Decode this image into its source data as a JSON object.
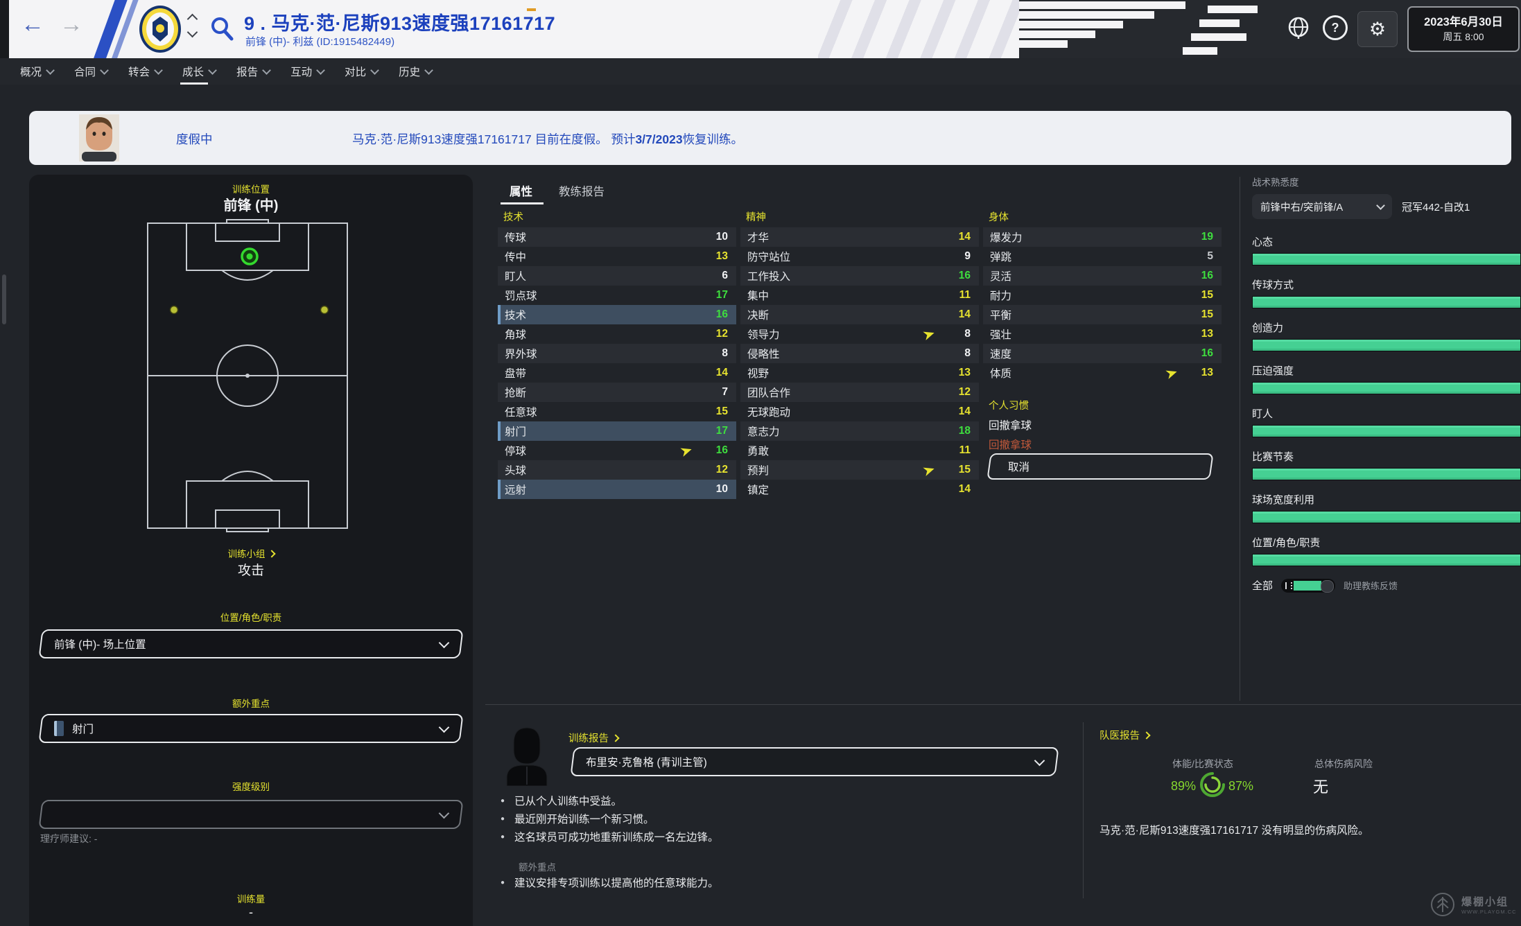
{
  "header": {
    "player_name": "9 . 马克·范·尼斯913速度强17161717",
    "player_info": "前锋 (中)- 利兹 (ID:1915482449)",
    "date_line1": "2023年6月30日",
    "date_line2": "周五 8:00"
  },
  "navbar": {
    "tabs": [
      "概况",
      "合同",
      "转会",
      "成长",
      "报告",
      "互动",
      "对比",
      "历史"
    ],
    "active_index": 3
  },
  "banner": {
    "status": "度假中",
    "message_prefix": "马克·范·尼斯913速度强17161717 目前在度假。 预计",
    "message_bold": "3/7/2023",
    "message_suffix": "恢复训练。"
  },
  "left_panel": {
    "position_label": "训练位置",
    "position_value": "前锋 (中)",
    "group_label": "训练小组",
    "group_value": "攻击",
    "role_label": "位置/角色/职责",
    "role_value": "前锋 (中)- 场上位置",
    "focus_label": "额外重点",
    "focus_value": "射门",
    "intensity_label": "强度级别",
    "intensity_value": "",
    "physio_note": "理疗师建议: -",
    "volume_label": "训练量",
    "volume_value": "-"
  },
  "attributes": {
    "tabs": [
      "属性",
      "教练报告"
    ],
    "active_tab": "属性",
    "columns": [
      {
        "title": "技术",
        "rows": [
          {
            "name": "传球",
            "value": 10
          },
          {
            "name": "传中",
            "value": 13
          },
          {
            "name": "盯人",
            "value": 6
          },
          {
            "name": "罚点球",
            "value": 17
          },
          {
            "name": "技术",
            "value": 16,
            "highlight": true
          },
          {
            "name": "角球",
            "value": 12
          },
          {
            "name": "界外球",
            "value": 8
          },
          {
            "name": "盘带",
            "value": 14
          },
          {
            "name": "抢断",
            "value": 7
          },
          {
            "name": "任意球",
            "value": 15
          },
          {
            "name": "射门",
            "value": 17,
            "highlight": true
          },
          {
            "name": "停球",
            "value": 16,
            "arrow": true
          },
          {
            "name": "头球",
            "value": 12
          },
          {
            "name": "远射",
            "value": 10,
            "highlight": true
          }
        ]
      },
      {
        "title": "精神",
        "rows": [
          {
            "name": "才华",
            "value": 14
          },
          {
            "name": "防守站位",
            "value": 9
          },
          {
            "name": "工作投入",
            "value": 16
          },
          {
            "name": "集中",
            "value": 11
          },
          {
            "name": "决断",
            "value": 14
          },
          {
            "name": "领导力",
            "value": 8,
            "arrow": true
          },
          {
            "name": "侵略性",
            "value": 8
          },
          {
            "name": "视野",
            "value": 13
          },
          {
            "name": "团队合作",
            "value": 12
          },
          {
            "name": "无球跑动",
            "value": 14
          },
          {
            "name": "意志力",
            "value": 18
          },
          {
            "name": "勇敢",
            "value": 11
          },
          {
            "name": "预判",
            "value": 15,
            "arrow": true
          },
          {
            "name": "镇定",
            "value": 14
          }
        ]
      },
      {
        "title": "身体",
        "rows": [
          {
            "name": "爆发力",
            "value": 19
          },
          {
            "name": "弹跳",
            "value": 5
          },
          {
            "name": "灵活",
            "value": 16
          },
          {
            "name": "耐力",
            "value": 15
          },
          {
            "name": "平衡",
            "value": 15
          },
          {
            "name": "强壮",
            "value": 13
          },
          {
            "name": "速度",
            "value": 16
          },
          {
            "name": "体质",
            "value": 13,
            "arrow": true
          }
        ]
      }
    ],
    "habits": {
      "title": "个人习惯",
      "items": [
        {
          "text": "回撤拿球",
          "state": "learned"
        },
        {
          "text": "回撤拿球",
          "state": "learning"
        }
      ],
      "cancel_label": "取消"
    }
  },
  "sidebar": {
    "title": "战术熟悉度",
    "role_dropdown": "前锋中右/突前锋/A",
    "tactic_name": "冠军442-自改1",
    "bars": [
      {
        "label": "心态",
        "value": 100
      },
      {
        "label": "传球方式",
        "value": 100
      },
      {
        "label": "创造力",
        "value": 100
      },
      {
        "label": "压迫强度",
        "value": 100
      },
      {
        "label": "盯人",
        "value": 100
      },
      {
        "label": "比赛节奏",
        "value": 100
      },
      {
        "label": "球场宽度利用",
        "value": 100
      },
      {
        "label": "位置/角色/职责",
        "value": 100
      }
    ],
    "footer_all": "全部",
    "footer_feedback": "助理教练反馈"
  },
  "training_report": {
    "title": "训练报告",
    "coach_dropdown": "布里安·克鲁格 (青训主管)",
    "bullets": [
      "已从个人训练中受益。",
      "最近刚开始训练一个新习惯。",
      "这名球员可成功地重新训练成一名左边锋。"
    ],
    "extra_label": "额外重点",
    "extra_bullets": [
      "建议安排专项训练以提高他的任意球能力。"
    ]
  },
  "medical_report": {
    "title": "队医报告",
    "condition_label": "体能/比赛状态",
    "condition_left": "89%",
    "condition_right": "87%",
    "risk_label": "总体伤病风险",
    "risk_value": "无",
    "note": "马克·范·尼斯913速度强17161717 没有明显的伤病风险。"
  },
  "watermark": {
    "line1": "爆棚小组",
    "line2": "WWW.PLAYGM.CC"
  },
  "colors": {
    "accent_yellow": "#e5e22f",
    "attr_green": "#3ede3e",
    "attr_yellow": "#e7e32f",
    "bar_green": "#45d093",
    "link_blue": "#2349bb",
    "habit_red": "#c2593a"
  }
}
